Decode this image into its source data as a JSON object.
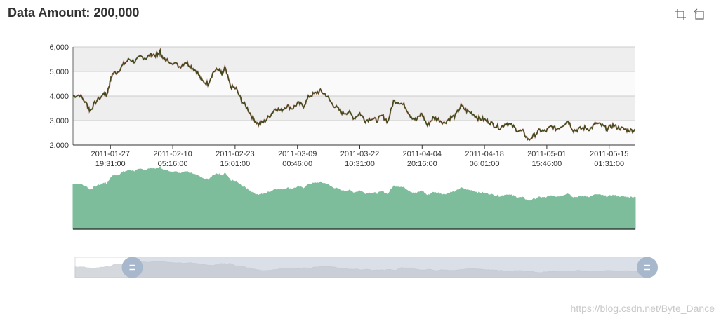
{
  "title": "Data Amount: 200,000",
  "watermark": "https://blog.csdn.net/Byte_Dance",
  "toolbox": {
    "icons": [
      "data-zoom-icon",
      "zoom-reset-icon"
    ]
  },
  "colors": {
    "line": "#3b4a1a",
    "line_accent": "#8b2a1a",
    "area_fill": "#7dbd9b",
    "band_dark": "#eeeeee",
    "band_light": "#fafafa",
    "slider_bg": "#d6dbe6",
    "slider_handle": "#a7b7cc"
  },
  "chart_data": {
    "type": "line",
    "title": "Data Amount: 200,000",
    "ylim": [
      2000,
      6000
    ],
    "yticks": [
      "2,000",
      "3,000",
      "4,000",
      "5,000",
      "6,000"
    ],
    "xticks": [
      [
        "2011-01-27",
        "19:31:00"
      ],
      [
        "2011-02-10",
        "05:16:00"
      ],
      [
        "2011-02-23",
        "15:01:00"
      ],
      [
        "2011-03-09",
        "00:46:00"
      ],
      [
        "2011-03-22",
        "10:31:00"
      ],
      [
        "2011-04-04",
        "20:16:00"
      ],
      [
        "2011-04-18",
        "06:01:00"
      ],
      [
        "2011-05-01",
        "15:46:00"
      ],
      [
        "2011-05-15",
        "01:31:00"
      ]
    ],
    "series": [
      {
        "values": [
          [
            0.0,
            4000
          ],
          [
            0.012,
            4050
          ],
          [
            0.025,
            3650
          ],
          [
            0.03,
            3400
          ],
          [
            0.04,
            3750
          ],
          [
            0.055,
            4100
          ],
          [
            0.06,
            4050
          ],
          [
            0.065,
            4500
          ],
          [
            0.07,
            4900
          ],
          [
            0.08,
            5000
          ],
          [
            0.09,
            5300
          ],
          [
            0.1,
            5500
          ],
          [
            0.11,
            5400
          ],
          [
            0.12,
            5600
          ],
          [
            0.13,
            5550
          ],
          [
            0.14,
            5700
          ],
          [
            0.15,
            5650
          ],
          [
            0.155,
            5800
          ],
          [
            0.16,
            5500
          ],
          [
            0.175,
            5400
          ],
          [
            0.19,
            5200
          ],
          [
            0.2,
            5400
          ],
          [
            0.21,
            5200
          ],
          [
            0.22,
            5000
          ],
          [
            0.23,
            4600
          ],
          [
            0.24,
            4500
          ],
          [
            0.25,
            5000
          ],
          [
            0.26,
            5100
          ],
          [
            0.265,
            4850
          ],
          [
            0.27,
            5150
          ],
          [
            0.28,
            4400
          ],
          [
            0.29,
            4300
          ],
          [
            0.3,
            3800
          ],
          [
            0.31,
            3500
          ],
          [
            0.32,
            3100
          ],
          [
            0.33,
            2850
          ],
          [
            0.34,
            2950
          ],
          [
            0.35,
            3200
          ],
          [
            0.36,
            3500
          ],
          [
            0.37,
            3400
          ],
          [
            0.38,
            3600
          ],
          [
            0.39,
            3500
          ],
          [
            0.4,
            3700
          ],
          [
            0.41,
            3600
          ],
          [
            0.42,
            4000
          ],
          [
            0.43,
            4100
          ],
          [
            0.44,
            4200
          ],
          [
            0.45,
            4050
          ],
          [
            0.46,
            3700
          ],
          [
            0.47,
            3500
          ],
          [
            0.48,
            3300
          ],
          [
            0.49,
            3350
          ],
          [
            0.5,
            3100
          ],
          [
            0.51,
            3300
          ],
          [
            0.52,
            3000
          ],
          [
            0.53,
            3100
          ],
          [
            0.54,
            3000
          ],
          [
            0.55,
            3200
          ],
          [
            0.56,
            2950
          ],
          [
            0.57,
            3800
          ],
          [
            0.58,
            3750
          ],
          [
            0.59,
            3600
          ],
          [
            0.6,
            3200
          ],
          [
            0.61,
            3000
          ],
          [
            0.62,
            3300
          ],
          [
            0.63,
            2800
          ],
          [
            0.64,
            3100
          ],
          [
            0.65,
            3050
          ],
          [
            0.66,
            2900
          ],
          [
            0.67,
            3100
          ],
          [
            0.68,
            3200
          ],
          [
            0.69,
            3600
          ],
          [
            0.7,
            3400
          ],
          [
            0.71,
            3300
          ],
          [
            0.72,
            3100
          ],
          [
            0.73,
            3050
          ],
          [
            0.74,
            2950
          ],
          [
            0.75,
            2800
          ],
          [
            0.76,
            2700
          ],
          [
            0.77,
            2900
          ],
          [
            0.78,
            2800
          ],
          [
            0.79,
            2600
          ],
          [
            0.8,
            2550
          ],
          [
            0.81,
            2200
          ],
          [
            0.82,
            2400
          ],
          [
            0.83,
            2600
          ],
          [
            0.84,
            2550
          ],
          [
            0.85,
            2750
          ],
          [
            0.86,
            2650
          ],
          [
            0.87,
            2800
          ],
          [
            0.88,
            3000
          ],
          [
            0.89,
            2600
          ],
          [
            0.9,
            2650
          ],
          [
            0.91,
            2700
          ],
          [
            0.92,
            2650
          ],
          [
            0.93,
            2900
          ],
          [
            0.94,
            2800
          ],
          [
            0.95,
            2650
          ],
          [
            0.96,
            2800
          ],
          [
            0.97,
            2700
          ],
          [
            0.98,
            2650
          ],
          [
            0.99,
            2600
          ],
          [
            1.0,
            2600
          ]
        ]
      }
    ],
    "datazoom": {
      "start": 0.1,
      "end": 1.0
    },
    "grid": true
  }
}
